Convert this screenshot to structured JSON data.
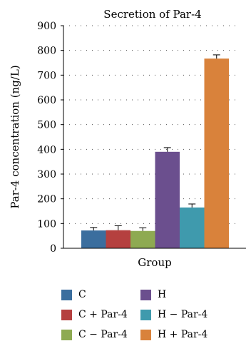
{
  "chart_data": {
    "type": "bar",
    "title": "Secretion of Par-4",
    "xlabel": "Group",
    "ylabel": "Par-4 concentration (ng/L)",
    "ylim": [
      0,
      900
    ],
    "yticks": [
      0,
      100,
      200,
      300,
      400,
      500,
      600,
      700,
      800,
      900
    ],
    "grid": "dotted horizontal",
    "legend_position": "bottom",
    "series": [
      {
        "name": "C",
        "value": 72,
        "error": 12,
        "color": "#3b6e9e"
      },
      {
        "name": "C + Par-4",
        "value": 73,
        "error": 18,
        "color": "#b5403f"
      },
      {
        "name": "C − Par-4",
        "value": 70,
        "error": 13,
        "color": "#8eaa52"
      },
      {
        "name": "H",
        "value": 390,
        "error": 17,
        "color": "#6b4f8e"
      },
      {
        "name": "H − Par-4",
        "value": 165,
        "error": 14,
        "color": "#3f9aad"
      },
      {
        "name": "H + Par-4",
        "value": 767,
        "error": 15,
        "color": "#d9823b"
      }
    ]
  }
}
